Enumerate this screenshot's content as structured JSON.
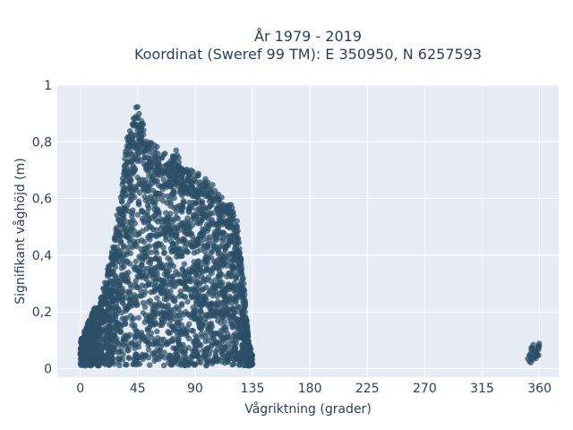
{
  "chart_data": {
    "type": "scatter",
    "title_line1": "År 1979 - 2019",
    "title_line2": "Koordinat (Sweref 99 TM): E 350950, N 6257593",
    "xlabel": "Vågriktning (grader)",
    "ylabel": "Signifikant våghöjd (m)",
    "xlim": [
      -18,
      375
    ],
    "ylim": [
      -0.03,
      1.0
    ],
    "x_ticks": [
      0,
      45,
      90,
      135,
      180,
      225,
      270,
      315,
      360
    ],
    "x_tick_labels": [
      "0",
      "45",
      "90",
      "135",
      "180",
      "225",
      "270",
      "315",
      "360"
    ],
    "y_ticks": [
      0,
      0.2,
      0.4,
      0.6,
      0.8,
      1
    ],
    "y_tick_labels": [
      "0",
      "0,2",
      "0,4",
      "0,6",
      "0,8",
      "1"
    ],
    "grid": true,
    "marker_color": "#2c5068",
    "plot_background": "#e5ecf6",
    "envelope": [
      [
        0,
        0.1
      ],
      [
        5,
        0.15
      ],
      [
        10,
        0.21
      ],
      [
        15,
        0.23
      ],
      [
        20,
        0.32
      ],
      [
        25,
        0.42
      ],
      [
        30,
        0.58
      ],
      [
        35,
        0.77
      ],
      [
        40,
        0.9
      ],
      [
        43,
        0.96
      ],
      [
        45,
        0.91
      ],
      [
        50,
        0.86
      ],
      [
        55,
        0.8
      ],
      [
        60,
        0.77
      ],
      [
        65,
        0.75
      ],
      [
        70,
        0.74
      ],
      [
        75,
        0.76
      ],
      [
        80,
        0.73
      ],
      [
        85,
        0.72
      ],
      [
        90,
        0.7
      ],
      [
        95,
        0.68
      ],
      [
        100,
        0.66
      ],
      [
        105,
        0.63
      ],
      [
        110,
        0.61
      ],
      [
        115,
        0.58
      ],
      [
        120,
        0.56
      ],
      [
        122,
        0.55
      ],
      [
        125,
        0.45
      ],
      [
        128,
        0.33
      ],
      [
        130,
        0.2
      ],
      [
        132,
        0.1
      ],
      [
        135,
        0.05
      ]
    ],
    "cluster_360": [
      [
        350,
        0.03
      ],
      [
        355,
        0.09
      ],
      [
        358,
        0.02
      ],
      [
        360,
        0.08
      ]
    ]
  }
}
